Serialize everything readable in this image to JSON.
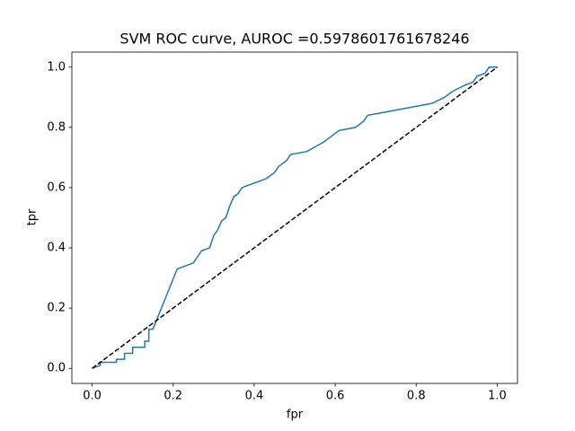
{
  "chart_data": {
    "type": "line",
    "title": "SVM ROC curve, AUROC =0.5978601761678246",
    "xlabel": "fpr",
    "ylabel": "tpr",
    "xlim": [
      -0.05,
      1.05
    ],
    "ylim": [
      -0.05,
      1.05
    ],
    "xticks": [
      {
        "value": 0,
        "label": "0.0"
      },
      0.2,
      0.4,
      0.6,
      0.8,
      {
        "value": 1,
        "label": "1.0"
      }
    ],
    "yticks": [
      {
        "value": 0,
        "label": "0.0"
      },
      0.2,
      0.4,
      0.6,
      0.8,
      {
        "value": 1,
        "label": "1.0"
      }
    ],
    "grid": false,
    "series": [
      {
        "color": "#1f77b4",
        "linestyle": "solid",
        "x": [
          0,
          0.02,
          0.02,
          0.06,
          0.06,
          0.08,
          0.08,
          0.1,
          0.1,
          0.13,
          0.13,
          0.14,
          0.14,
          0.15,
          0.21,
          0.23,
          0.25,
          0.26,
          0.27,
          0.29,
          0.3,
          0.31,
          0.32,
          0.33,
          0.34,
          0.35,
          0.36,
          0.37,
          0.39,
          0.41,
          0.43,
          0.45,
          0.46,
          0.48,
          0.49,
          0.53,
          0.57,
          0.59,
          0.61,
          0.65,
          0.67,
          0.68,
          0.72,
          0.76,
          0.8,
          0.84,
          0.87,
          0.89,
          0.92,
          0.94,
          0.95,
          0.97,
          0.98,
          1.0
        ],
        "values": [
          0,
          0.01,
          0.02,
          0.02,
          0.03,
          0.03,
          0.05,
          0.05,
          0.07,
          0.07,
          0.09,
          0.09,
          0.13,
          0.13,
          0.33,
          0.34,
          0.35,
          0.37,
          0.39,
          0.4,
          0.44,
          0.46,
          0.49,
          0.5,
          0.54,
          0.57,
          0.58,
          0.6,
          0.61,
          0.62,
          0.63,
          0.65,
          0.67,
          0.69,
          0.71,
          0.72,
          0.75,
          0.77,
          0.79,
          0.8,
          0.82,
          0.84,
          0.85,
          0.86,
          0.87,
          0.88,
          0.9,
          0.92,
          0.94,
          0.95,
          0.97,
          0.98,
          1.0,
          1.0
        ]
      },
      {
        "color": "#000000",
        "linestyle": "dashed",
        "x": [
          0,
          1
        ],
        "values": [
          0,
          1
        ]
      }
    ]
  }
}
